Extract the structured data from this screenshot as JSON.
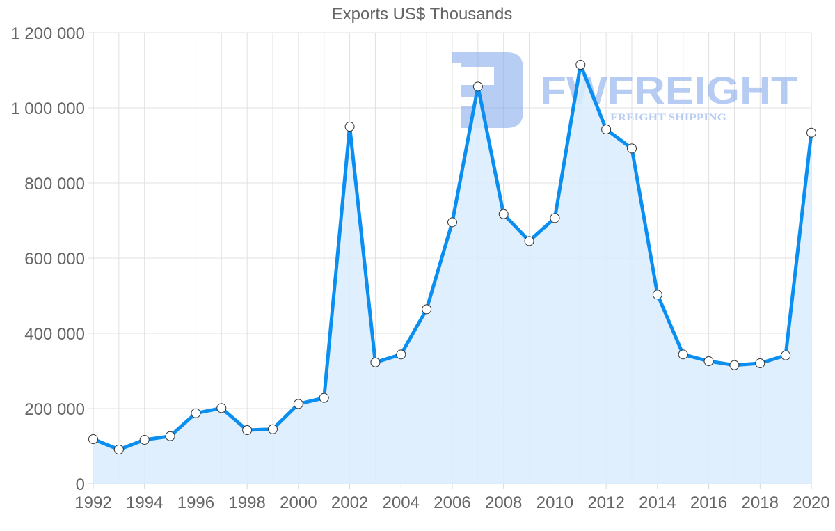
{
  "chart_data": {
    "type": "area",
    "title": "Exports US$ Thousands",
    "xlabel": "",
    "ylabel": "",
    "x": [
      1992,
      1993,
      1994,
      1995,
      1996,
      1997,
      1998,
      1999,
      2000,
      2001,
      2002,
      2003,
      2004,
      2005,
      2006,
      2007,
      2008,
      2009,
      2010,
      2011,
      2012,
      2013,
      2014,
      2015,
      2016,
      2017,
      2018,
      2019,
      2020
    ],
    "series": [
      {
        "name": "Exports US$ Thousands",
        "values": [
          118500,
          90700,
          116700,
          126500,
          187600,
          201200,
          142600,
          145000,
          212300,
          228400,
          950000,
          322800,
          343800,
          464200,
          695700,
          1056800,
          717300,
          645700,
          706800,
          1114800,
          942600,
          892000,
          503100,
          343800,
          325900,
          315400,
          320400,
          341400,
          933900
        ]
      }
    ],
    "xticks": [
      "1992",
      "1994",
      "1996",
      "1998",
      "2000",
      "2002",
      "2004",
      "2006",
      "2008",
      "2010",
      "2012",
      "2014",
      "2016",
      "2018",
      "2020"
    ],
    "yticks": [
      "0",
      "200 000",
      "400 000",
      "600 000",
      "800 000",
      "1 000 000",
      "1 200 000"
    ],
    "ylim": [
      0,
      1200000
    ],
    "xlim": [
      1992,
      2020
    ],
    "grid": true,
    "legend": null,
    "colors": {
      "line": "#0a8ef0",
      "fill": "#d9ecfd",
      "grid": "#e0e0e0",
      "point_fill": "#ffffff",
      "point_stroke": "#333333",
      "text": "#666666",
      "watermark": "#a9c4f0"
    }
  },
  "watermark": {
    "brand": "FWFREIGHT",
    "tagline": "FREIGHT SHIPPING"
  }
}
